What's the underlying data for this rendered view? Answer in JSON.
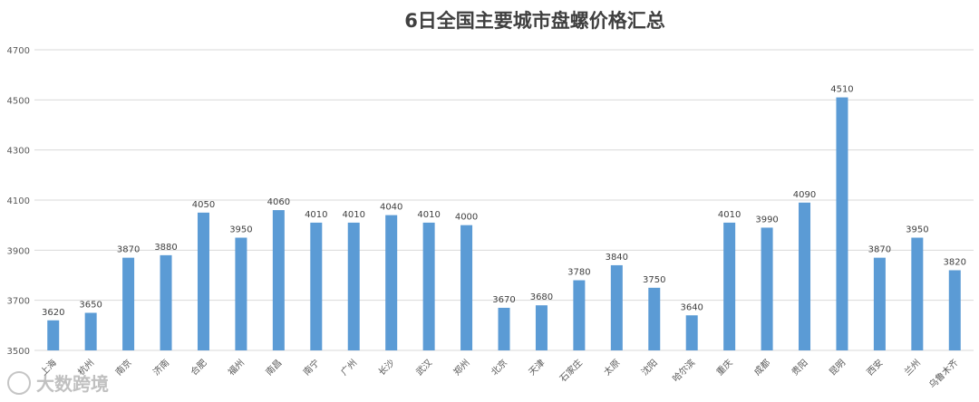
{
  "chart_data": {
    "type": "bar",
    "title": "6日全国主要城市盘螺价格汇总",
    "categories": [
      "上海",
      "杭州",
      "南京",
      "济南",
      "合肥",
      "福州",
      "南昌",
      "南宁",
      "广州",
      "长沙",
      "武汉",
      "郑州",
      "北京",
      "天津",
      "石家庄",
      "太原",
      "沈阳",
      "哈尔滨",
      "重庆",
      "成都",
      "贵阳",
      "昆明",
      "西安",
      "兰州",
      "乌鲁木齐"
    ],
    "values": [
      3620,
      3650,
      3870,
      3880,
      4050,
      3950,
      4060,
      4010,
      4010,
      4040,
      4010,
      4000,
      3670,
      3680,
      3780,
      3840,
      3750,
      3640,
      4010,
      3990,
      4090,
      4510,
      3870,
      3950,
      3820
    ],
    "ylim": [
      3500,
      4700
    ],
    "yticks": [
      3500,
      3700,
      3900,
      4100,
      4300,
      4500,
      4700
    ],
    "grid": true,
    "bar_color": "#5b9bd5",
    "grid_color": "#d9d9d9",
    "xlabel": "",
    "ylabel": ""
  },
  "watermark": {
    "text": "大数跨境"
  }
}
